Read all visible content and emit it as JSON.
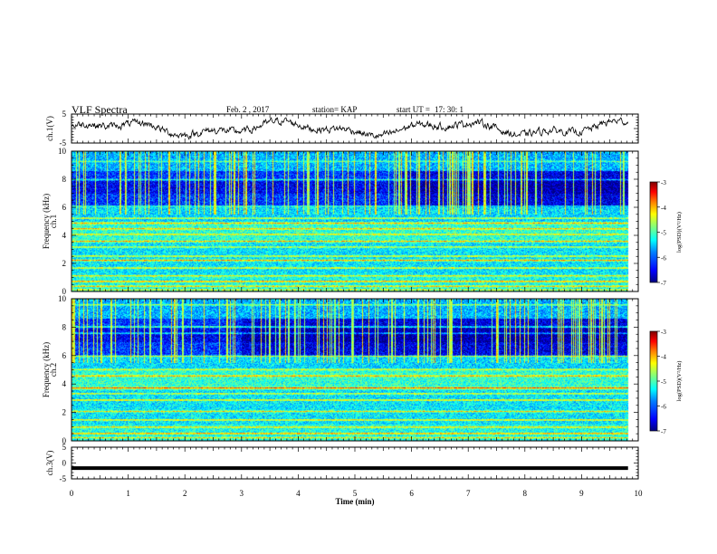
{
  "header": {
    "title": "VLF Spectra",
    "date": "Feb. 2 , 2017",
    "station": "station= KAP",
    "start_label": "start  UT =",
    "start_value": "17: 30: 1"
  },
  "chart_data": {
    "type": "heatmap",
    "xlabel": "Time  (min)",
    "xlim": [
      0,
      10
    ],
    "x_ticks": [
      "0",
      "1",
      "2",
      "3",
      "4",
      "5",
      "6",
      "7",
      "8",
      "9",
      "10"
    ],
    "data_end_min": 9.82,
    "panels": [
      {
        "id": "ch1-waveform",
        "kind": "line",
        "ylabel": "ch.1(V)",
        "ylim": [
          -5,
          5
        ],
        "y_ticks": [
          "5",
          "-5"
        ],
        "line_color": "#000000"
      },
      {
        "id": "ch1-spectrogram",
        "kind": "spectrogram",
        "ylabel_top": "ch.1",
        "ylabel": "Frequency  (kHz)",
        "ylim": [
          0,
          10
        ],
        "y_ticks": [
          "0",
          "2",
          "4",
          "6",
          "8",
          "10"
        ],
        "colorbar": {
          "label": "log(PSD)(V²/Hz)",
          "range": [
            -7,
            -3
          ],
          "ticks": [
            "-3",
            "-4",
            "-5",
            "-6",
            "-7"
          ]
        }
      },
      {
        "id": "ch2-spectrogram",
        "kind": "spectrogram",
        "ylabel_top": "ch.2",
        "ylabel": "Frequency  (kHz)",
        "ylim": [
          0,
          10
        ],
        "y_ticks": [
          "0",
          "2",
          "4",
          "6",
          "8",
          "10"
        ],
        "colorbar": {
          "label": "log(PSD)(V²/Hz)",
          "range": [
            -7,
            -3
          ],
          "ticks": [
            "-3",
            "-4",
            "-5",
            "-6",
            "-7"
          ]
        }
      },
      {
        "id": "ch3-waveform",
        "kind": "line",
        "ylabel": "ch.3(V)",
        "ylim": [
          -5,
          5
        ],
        "y_ticks": [
          "5",
          "0",
          "-5"
        ],
        "constant_value": -1.6,
        "line_color": "#000000"
      }
    ],
    "colormap": [
      "#00007f",
      "#0000ff",
      "#007fff",
      "#00ffff",
      "#7fff7f",
      "#ffff00",
      "#ff7f00",
      "#ff0000",
      "#7f0000"
    ],
    "grid": false
  }
}
